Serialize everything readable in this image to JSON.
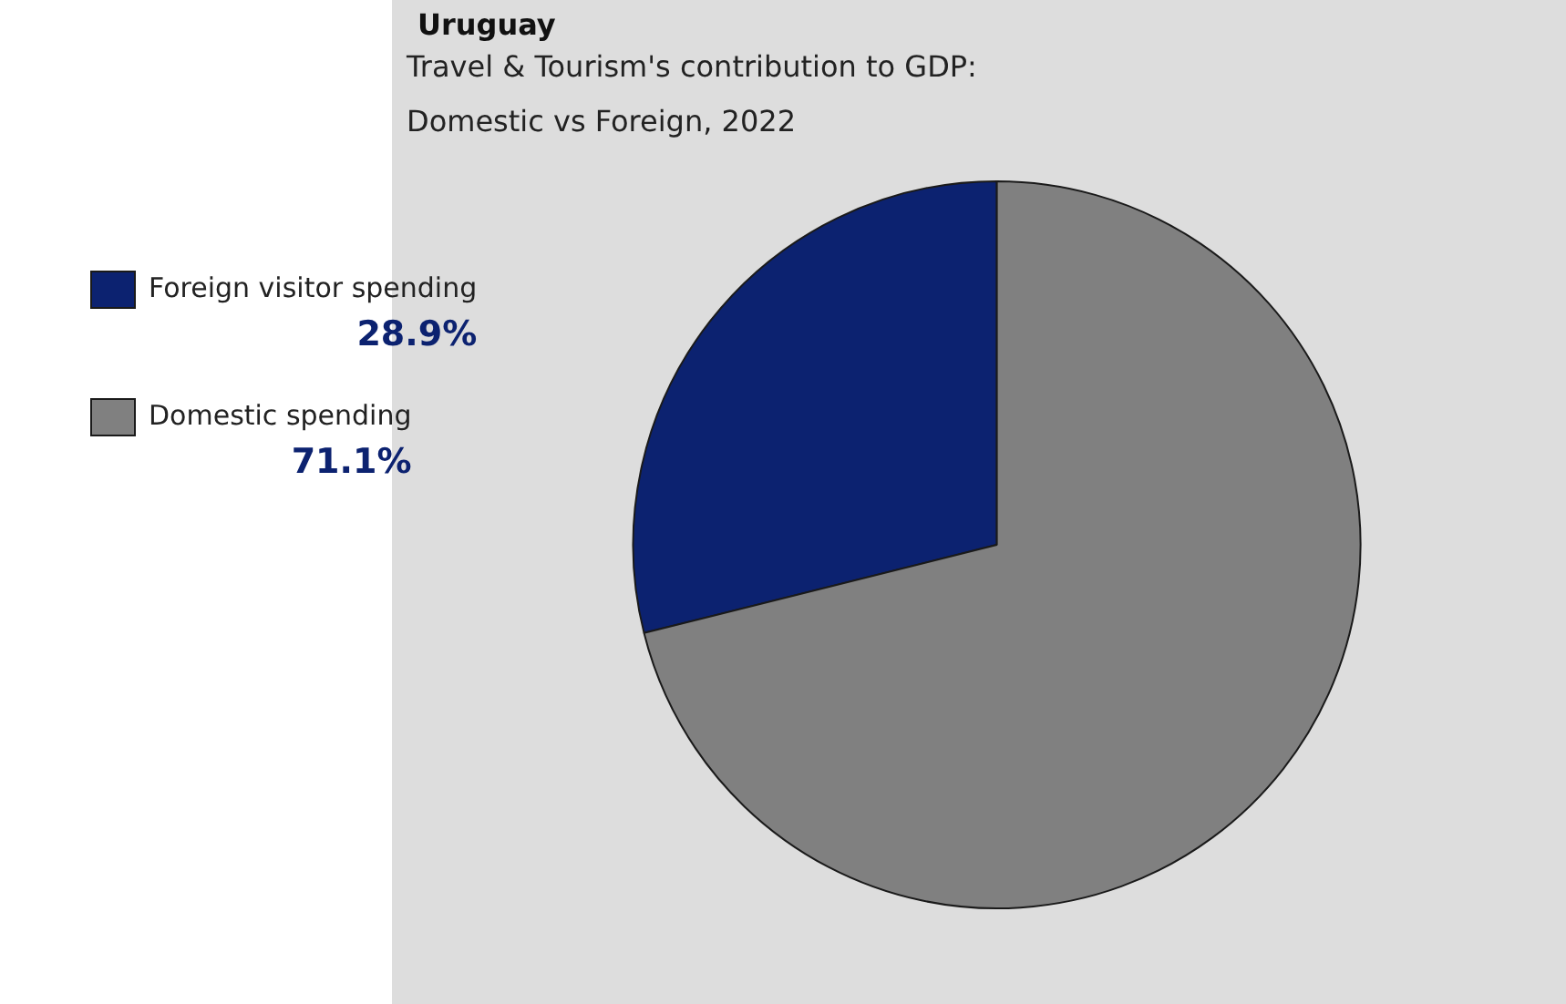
{
  "chart_data": {
    "type": "pie",
    "title": "Uruguay",
    "subtitle": "Travel & Tourism's contribution to GDP: Domestic vs Foreign, 2022",
    "categories": [
      "Foreign visitor spending",
      "Domestic spending"
    ],
    "values": [
      28.9,
      71.1
    ],
    "colors": [
      "#0c2270",
      "#808080"
    ],
    "value_labels": [
      "28.9%",
      "71.1%"
    ],
    "legend": "left"
  }
}
